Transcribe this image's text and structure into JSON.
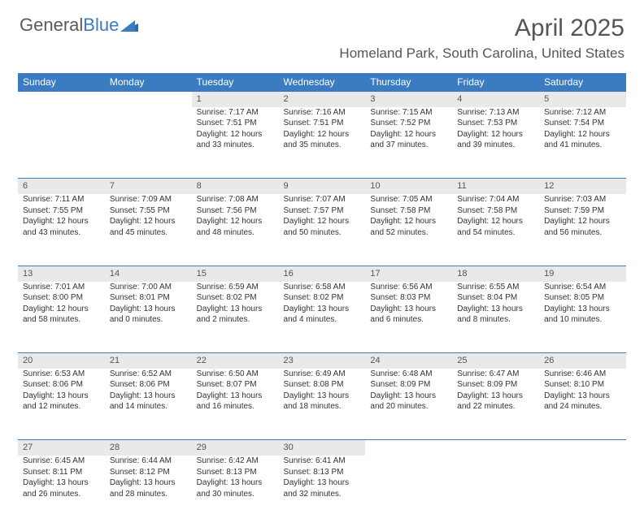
{
  "brand": {
    "part1": "General",
    "part2": "Blue"
  },
  "title": {
    "month": "April 2025",
    "location": "Homeland Park, South Carolina, United States"
  },
  "colors": {
    "header_bg": "#3b7bbf",
    "header_text": "#ffffff",
    "daynum_bg": "#e9e9e9",
    "body_text": "#333333",
    "title_text": "#555555",
    "row_border": "#3b7bbf"
  },
  "weekdays": [
    "Sunday",
    "Monday",
    "Tuesday",
    "Wednesday",
    "Thursday",
    "Friday",
    "Saturday"
  ],
  "weeks": [
    {
      "nums": [
        "",
        "",
        "1",
        "2",
        "3",
        "4",
        "5"
      ],
      "cells": [
        null,
        null,
        {
          "sr": "Sunrise: 7:17 AM",
          "ss": "Sunset: 7:51 PM",
          "d1": "Daylight: 12 hours",
          "d2": "and 33 minutes."
        },
        {
          "sr": "Sunrise: 7:16 AM",
          "ss": "Sunset: 7:51 PM",
          "d1": "Daylight: 12 hours",
          "d2": "and 35 minutes."
        },
        {
          "sr": "Sunrise: 7:15 AM",
          "ss": "Sunset: 7:52 PM",
          "d1": "Daylight: 12 hours",
          "d2": "and 37 minutes."
        },
        {
          "sr": "Sunrise: 7:13 AM",
          "ss": "Sunset: 7:53 PM",
          "d1": "Daylight: 12 hours",
          "d2": "and 39 minutes."
        },
        {
          "sr": "Sunrise: 7:12 AM",
          "ss": "Sunset: 7:54 PM",
          "d1": "Daylight: 12 hours",
          "d2": "and 41 minutes."
        }
      ]
    },
    {
      "nums": [
        "6",
        "7",
        "8",
        "9",
        "10",
        "11",
        "12"
      ],
      "cells": [
        {
          "sr": "Sunrise: 7:11 AM",
          "ss": "Sunset: 7:55 PM",
          "d1": "Daylight: 12 hours",
          "d2": "and 43 minutes."
        },
        {
          "sr": "Sunrise: 7:09 AM",
          "ss": "Sunset: 7:55 PM",
          "d1": "Daylight: 12 hours",
          "d2": "and 45 minutes."
        },
        {
          "sr": "Sunrise: 7:08 AM",
          "ss": "Sunset: 7:56 PM",
          "d1": "Daylight: 12 hours",
          "d2": "and 48 minutes."
        },
        {
          "sr": "Sunrise: 7:07 AM",
          "ss": "Sunset: 7:57 PM",
          "d1": "Daylight: 12 hours",
          "d2": "and 50 minutes."
        },
        {
          "sr": "Sunrise: 7:05 AM",
          "ss": "Sunset: 7:58 PM",
          "d1": "Daylight: 12 hours",
          "d2": "and 52 minutes."
        },
        {
          "sr": "Sunrise: 7:04 AM",
          "ss": "Sunset: 7:58 PM",
          "d1": "Daylight: 12 hours",
          "d2": "and 54 minutes."
        },
        {
          "sr": "Sunrise: 7:03 AM",
          "ss": "Sunset: 7:59 PM",
          "d1": "Daylight: 12 hours",
          "d2": "and 56 minutes."
        }
      ]
    },
    {
      "nums": [
        "13",
        "14",
        "15",
        "16",
        "17",
        "18",
        "19"
      ],
      "cells": [
        {
          "sr": "Sunrise: 7:01 AM",
          "ss": "Sunset: 8:00 PM",
          "d1": "Daylight: 12 hours",
          "d2": "and 58 minutes."
        },
        {
          "sr": "Sunrise: 7:00 AM",
          "ss": "Sunset: 8:01 PM",
          "d1": "Daylight: 13 hours",
          "d2": "and 0 minutes."
        },
        {
          "sr": "Sunrise: 6:59 AM",
          "ss": "Sunset: 8:02 PM",
          "d1": "Daylight: 13 hours",
          "d2": "and 2 minutes."
        },
        {
          "sr": "Sunrise: 6:58 AM",
          "ss": "Sunset: 8:02 PM",
          "d1": "Daylight: 13 hours",
          "d2": "and 4 minutes."
        },
        {
          "sr": "Sunrise: 6:56 AM",
          "ss": "Sunset: 8:03 PM",
          "d1": "Daylight: 13 hours",
          "d2": "and 6 minutes."
        },
        {
          "sr": "Sunrise: 6:55 AM",
          "ss": "Sunset: 8:04 PM",
          "d1": "Daylight: 13 hours",
          "d2": "and 8 minutes."
        },
        {
          "sr": "Sunrise: 6:54 AM",
          "ss": "Sunset: 8:05 PM",
          "d1": "Daylight: 13 hours",
          "d2": "and 10 minutes."
        }
      ]
    },
    {
      "nums": [
        "20",
        "21",
        "22",
        "23",
        "24",
        "25",
        "26"
      ],
      "cells": [
        {
          "sr": "Sunrise: 6:53 AM",
          "ss": "Sunset: 8:06 PM",
          "d1": "Daylight: 13 hours",
          "d2": "and 12 minutes."
        },
        {
          "sr": "Sunrise: 6:52 AM",
          "ss": "Sunset: 8:06 PM",
          "d1": "Daylight: 13 hours",
          "d2": "and 14 minutes."
        },
        {
          "sr": "Sunrise: 6:50 AM",
          "ss": "Sunset: 8:07 PM",
          "d1": "Daylight: 13 hours",
          "d2": "and 16 minutes."
        },
        {
          "sr": "Sunrise: 6:49 AM",
          "ss": "Sunset: 8:08 PM",
          "d1": "Daylight: 13 hours",
          "d2": "and 18 minutes."
        },
        {
          "sr": "Sunrise: 6:48 AM",
          "ss": "Sunset: 8:09 PM",
          "d1": "Daylight: 13 hours",
          "d2": "and 20 minutes."
        },
        {
          "sr": "Sunrise: 6:47 AM",
          "ss": "Sunset: 8:09 PM",
          "d1": "Daylight: 13 hours",
          "d2": "and 22 minutes."
        },
        {
          "sr": "Sunrise: 6:46 AM",
          "ss": "Sunset: 8:10 PM",
          "d1": "Daylight: 13 hours",
          "d2": "and 24 minutes."
        }
      ]
    },
    {
      "nums": [
        "27",
        "28",
        "29",
        "30",
        "",
        "",
        ""
      ],
      "cells": [
        {
          "sr": "Sunrise: 6:45 AM",
          "ss": "Sunset: 8:11 PM",
          "d1": "Daylight: 13 hours",
          "d2": "and 26 minutes."
        },
        {
          "sr": "Sunrise: 6:44 AM",
          "ss": "Sunset: 8:12 PM",
          "d1": "Daylight: 13 hours",
          "d2": "and 28 minutes."
        },
        {
          "sr": "Sunrise: 6:42 AM",
          "ss": "Sunset: 8:13 PM",
          "d1": "Daylight: 13 hours",
          "d2": "and 30 minutes."
        },
        {
          "sr": "Sunrise: 6:41 AM",
          "ss": "Sunset: 8:13 PM",
          "d1": "Daylight: 13 hours",
          "d2": "and 32 minutes."
        },
        null,
        null,
        null
      ]
    }
  ]
}
